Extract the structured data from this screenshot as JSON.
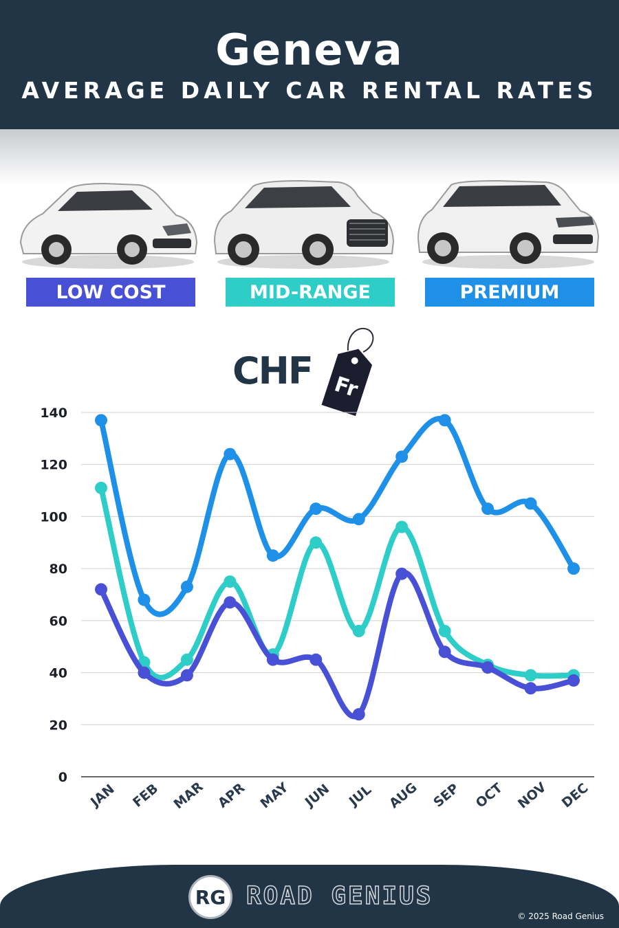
{
  "header": {
    "title": "Geneva",
    "subtitle": "AVERAGE DAILY CAR RENTAL RATES"
  },
  "categories": [
    {
      "label": "LOW COST",
      "color": "#4850d6",
      "car_icon": "hatchback-car-icon"
    },
    {
      "label": "MID-RANGE",
      "color": "#2ecdc8",
      "car_icon": "suv-car-icon"
    },
    {
      "label": "PREMIUM",
      "color": "#1e90e8",
      "car_icon": "luxury-suv-car-icon"
    }
  ],
  "currency": {
    "code": "CHF",
    "symbol": "Fr"
  },
  "chart_data": {
    "type": "line",
    "x": [
      "JAN",
      "FEB",
      "MAR",
      "APR",
      "MAY",
      "JUN",
      "JUL",
      "AUG",
      "SEP",
      "OCT",
      "NOV",
      "DEC"
    ],
    "ylim": [
      0,
      140
    ],
    "yticks": [
      0,
      20,
      40,
      60,
      80,
      100,
      120,
      140
    ],
    "grid": true,
    "smooth": true,
    "series": [
      {
        "name": "PREMIUM",
        "color": "#1e90e8",
        "values": [
          137,
          68,
          73,
          124,
          85,
          103,
          99,
          123,
          137,
          103,
          105,
          80
        ]
      },
      {
        "name": "MID-RANGE",
        "color": "#2ecdc8",
        "values": [
          111,
          44,
          45,
          75,
          47,
          90,
          56,
          96,
          56,
          43,
          39,
          39
        ]
      },
      {
        "name": "LOW COST",
        "color": "#4850d6",
        "values": [
          72,
          40,
          39,
          67,
          45,
          45,
          24,
          78,
          48,
          42,
          34,
          37
        ]
      }
    ]
  },
  "footer": {
    "logo": "RG",
    "brand": "ROAD GENIUS",
    "copyright": "© 2025 Road Genius"
  }
}
